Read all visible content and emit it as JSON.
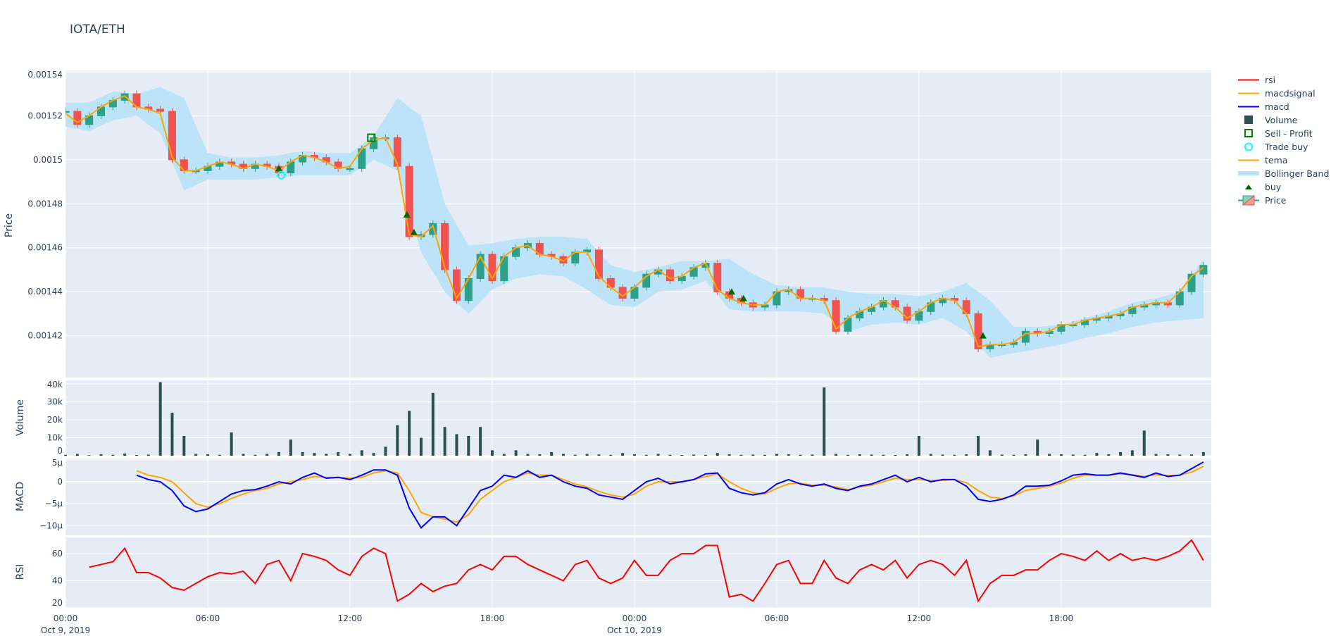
{
  "title": "IOTA/ETH",
  "legend": [
    {
      "name": "rsi",
      "kind": "line",
      "color": "#ff0000"
    },
    {
      "name": "macdsignal",
      "kind": "line",
      "color": "#ffa500"
    },
    {
      "name": "macd",
      "kind": "line",
      "color": "#0000ff"
    },
    {
      "name": "Volume",
      "kind": "bar",
      "color": "#2f4f4f"
    },
    {
      "name": "Sell - Profit",
      "kind": "square",
      "color": "#008000"
    },
    {
      "name": "Trade buy",
      "kind": "circle",
      "color": "#00ffff"
    },
    {
      "name": "tema",
      "kind": "line",
      "color": "#ffa500"
    },
    {
      "name": "Bollinger Band",
      "kind": "band",
      "color": "#b9e3f7"
    },
    {
      "name": "buy",
      "kind": "triangle",
      "color": "#006400"
    },
    {
      "name": "Price",
      "kind": "candle",
      "color": "#2ca089"
    }
  ],
  "chart_data": {
    "type": "candlestick-with-subplots",
    "x_axis": {
      "range": [
        "2019-10-09 00:00",
        "2019-10-11 00:20"
      ],
      "ticks": [
        {
          "hour": 0,
          "label": "00:00",
          "date": "Oct 9, 2019"
        },
        {
          "hour": 6,
          "label": "06:00",
          "date": ""
        },
        {
          "hour": 12,
          "label": "12:00",
          "date": ""
        },
        {
          "hour": 18,
          "label": "18:00",
          "date": ""
        },
        {
          "hour": 24,
          "label": "00:00",
          "date": "Oct 10, 2019"
        },
        {
          "hour": 30,
          "label": "06:00",
          "date": ""
        },
        {
          "hour": 36,
          "label": "12:00",
          "date": ""
        },
        {
          "hour": 42,
          "label": "18:00",
          "date": ""
        }
      ]
    },
    "colors": {
      "increasing": "#2ca089",
      "decreasing": "#ef5350",
      "band": "#b9e3f7",
      "tema": "#ffa500",
      "volume": "#2f4f4f",
      "macd": "#0000ff",
      "macdsignal": "#ffa500",
      "rsi": "#ff0000",
      "buy": "#006400",
      "sell": "#008000",
      "trade_buy": "#00ffff"
    },
    "price": {
      "ylabel": "Price",
      "ylim": [
        0.001401,
        0.0015406
      ],
      "ticks": [
        {
          "v": 0.00142,
          "label": "0.00142"
        },
        {
          "v": 0.00144,
          "label": "0.00144"
        },
        {
          "v": 0.00146,
          "label": "0.00146"
        },
        {
          "v": 0.00148,
          "label": "0.00148"
        },
        {
          "v": 0.0015,
          "label": "0.0015"
        },
        {
          "v": 0.00152,
          "label": "0.00152"
        },
        {
          "v": 0.00154,
          "label": "0.00154"
        }
      ],
      "start": "2019-10-09 00:00",
      "interval_minutes": 30,
      "close": [
        0.001522,
        0.001516,
        0.00152,
        0.001524,
        0.001527,
        0.00153,
        0.001524,
        0.001523,
        0.001522,
        0.0015,
        0.001495,
        0.001495,
        0.001497,
        0.001499,
        0.001498,
        0.001496,
        0.001498,
        0.001497,
        0.001494,
        0.001499,
        0.001502,
        0.001501,
        0.001499,
        0.001496,
        0.001496,
        0.001505,
        0.00151,
        0.00151,
        0.001497,
        0.001465,
        0.001466,
        0.001471,
        0.00145,
        0.001436,
        0.001446,
        0.001457,
        0.001445,
        0.001456,
        0.00146,
        0.001462,
        0.001457,
        0.001456,
        0.001453,
        0.001458,
        0.001459,
        0.001446,
        0.001442,
        0.001437,
        0.001442,
        0.001448,
        0.00145,
        0.001445,
        0.001447,
        0.001451,
        0.001453,
        0.00144,
        0.001437,
        0.001435,
        0.001433,
        0.001434,
        0.00144,
        0.001441,
        0.001437,
        0.001437,
        0.001436,
        0.001422,
        0.001428,
        0.001431,
        0.001433,
        0.001436,
        0.001433,
        0.001427,
        0.001431,
        0.001435,
        0.001437,
        0.001436,
        0.00143,
        0.001414,
        0.001416,
        0.001416,
        0.001417,
        0.001422,
        0.001421,
        0.001422,
        0.001425,
        0.001425,
        0.001427,
        0.001428,
        0.001429,
        0.00143,
        0.001433,
        0.001434,
        0.001435,
        0.001434,
        0.00144,
        0.001448,
        0.001452
      ],
      "tema": [
        0.001521,
        0.001517,
        0.00152,
        0.001524,
        0.001527,
        0.001529,
        0.001524,
        0.001523,
        0.001521,
        0.001501,
        0.001495,
        0.001495,
        0.001497,
        0.001499,
        0.001498,
        0.001496,
        0.001498,
        0.001497,
        0.001495,
        0.001499,
        0.001502,
        0.001501,
        0.001499,
        0.001496,
        0.001497,
        0.001505,
        0.001509,
        0.00151,
        0.001498,
        0.001466,
        0.001465,
        0.00147,
        0.001451,
        0.001437,
        0.001446,
        0.001456,
        0.001446,
        0.001456,
        0.00146,
        0.001461,
        0.001457,
        0.001456,
        0.001454,
        0.001458,
        0.001458,
        0.001447,
        0.001442,
        0.001438,
        0.001442,
        0.001447,
        0.00145,
        0.001446,
        0.001447,
        0.001451,
        0.001453,
        0.001441,
        0.001437,
        0.001435,
        0.001434,
        0.001434,
        0.00144,
        0.001441,
        0.001437,
        0.001437,
        0.001436,
        0.001423,
        0.001428,
        0.001431,
        0.001433,
        0.001436,
        0.001433,
        0.001428,
        0.001431,
        0.001435,
        0.001437,
        0.001436,
        0.00143,
        0.001415,
        0.001416,
        0.001416,
        0.001417,
        0.001421,
        0.001421,
        0.001422,
        0.001425,
        0.001425,
        0.001427,
        0.001428,
        0.001429,
        0.00143,
        0.001433,
        0.001434,
        0.001435,
        0.001435,
        0.00144,
        0.001447,
        0.001451
      ],
      "bollinger_interval_minutes": 60,
      "bb_upper": [
        0.001526,
        0.001526,
        0.001531,
        0.00153,
        0.001533,
        0.001528,
        0.001503,
        0.001501,
        0.001501,
        0.001502,
        0.001504,
        0.001503,
        0.001503,
        0.001511,
        0.001528,
        0.00152,
        0.00148,
        0.001461,
        0.001462,
        0.001464,
        0.001465,
        0.001465,
        0.001464,
        0.001452,
        0.001449,
        0.001451,
        0.001454,
        0.001454,
        0.001455,
        0.001448,
        0.001443,
        0.001442,
        0.001442,
        0.00144,
        0.001439,
        0.001439,
        0.001438,
        0.00144,
        0.001444,
        0.001436,
        0.001424,
        0.001424,
        0.001425,
        0.001428,
        0.001431,
        0.001435,
        0.001437,
        0.00144,
        0.001455
      ],
      "bb_lower": [
        0.001515,
        0.001513,
        0.001518,
        0.00152,
        0.001512,
        0.001486,
        0.001491,
        0.001491,
        0.001491,
        0.001492,
        0.001493,
        0.001493,
        0.001493,
        0.0015,
        0.001495,
        0.001458,
        0.00144,
        0.00143,
        0.001441,
        0.001446,
        0.001448,
        0.001447,
        0.001441,
        0.001434,
        0.001433,
        0.00144,
        0.001441,
        0.001445,
        0.001432,
        0.001431,
        0.001431,
        0.001431,
        0.00143,
        0.001422,
        0.001425,
        0.001426,
        0.001425,
        0.001428,
        0.001422,
        0.00141,
        0.001412,
        0.001414,
        0.001416,
        0.001419,
        0.001421,
        0.001424,
        0.001426,
        0.001427,
        0.001428
      ],
      "buy": [
        {
          "hour": 9.0,
          "price": 0.001496
        },
        {
          "hour": 14.4,
          "price": 0.001475
        },
        {
          "hour": 14.7,
          "price": 0.001467
        },
        {
          "hour": 28.1,
          "price": 0.00144
        },
        {
          "hour": 28.6,
          "price": 0.001437
        },
        {
          "hour": 38.7,
          "price": 0.00142
        }
      ],
      "trade_buy": [
        {
          "hour": 9.1,
          "price": 0.001493
        }
      ],
      "sell_profit": [
        {
          "hour": 12.9,
          "price": 0.00151
        }
      ]
    },
    "volume": {
      "ylabel": "Volume",
      "ylim": [
        0,
        42000
      ],
      "ticks": [
        {
          "v": 0,
          "label": "0"
        },
        {
          "v": 10000,
          "label": "10k"
        },
        {
          "v": 20000,
          "label": "20k"
        },
        {
          "v": 30000,
          "label": "30k"
        },
        {
          "v": 40000,
          "label": "40k"
        }
      ],
      "start": "2019-10-09 00:00",
      "interval_minutes": 30,
      "values": [
        500,
        1000,
        300,
        800,
        500,
        1200,
        400,
        600,
        41000,
        24000,
        11000,
        1000,
        800,
        500,
        13000,
        1000,
        500,
        1000,
        2000,
        9000,
        2000,
        1500,
        1000,
        2000,
        1000,
        3000,
        1500,
        5000,
        17000,
        25000,
        10000,
        35000,
        16000,
        12000,
        11000,
        16000,
        3000,
        1000,
        3000,
        1000,
        800,
        2000,
        1000,
        500,
        1000,
        700,
        500,
        1500,
        800,
        500,
        1000,
        500,
        400,
        600,
        500,
        1500,
        800,
        500,
        600,
        500,
        1000,
        800,
        500,
        600,
        38000,
        1000,
        500,
        800,
        600,
        500,
        400,
        800,
        11000,
        1000,
        600,
        500,
        800,
        11000,
        3000,
        600,
        500,
        800,
        9000,
        1000,
        800,
        600,
        500,
        1500,
        800,
        2000,
        3000,
        14000,
        1000,
        800,
        600,
        700,
        2000
      ]
    },
    "macd": {
      "ylabel": "MACD",
      "ylim": [
        -1.22e-05,
        5.3e-06
      ],
      "ticks": [
        {
          "v": 5e-06,
          "label": "5μ"
        },
        {
          "v": 0,
          "label": "0"
        },
        {
          "v": -5e-06,
          "label": "−5μ"
        },
        {
          "v": -1e-05,
          "label": "−10μ"
        }
      ],
      "start": "2019-10-09 03:00",
      "interval_minutes": 30,
      "macd": [
        1.5e-06,
        5e-07,
        0,
        -2e-06,
        -5.5e-06,
        -6.8e-06,
        -6.2e-06,
        -4.5e-06,
        -2.8e-06,
        -2e-06,
        -1.8e-06,
        -1e-06,
        0,
        -5e-07,
        1e-06,
        2e-06,
        8e-07,
        1e-06,
        5e-07,
        1.5e-06,
        2.7e-06,
        2.7e-06,
        1.5e-06,
        -6e-06,
        -1.05e-05,
        -8e-06,
        -8e-06,
        -1e-05,
        -6e-06,
        -2e-06,
        -1e-06,
        1.5e-06,
        1e-06,
        2.5e-06,
        1e-06,
        1.5e-06,
        0,
        -1e-06,
        -1.5e-06,
        -3e-06,
        -3.5e-06,
        -4e-06,
        -2e-06,
        0,
        8e-07,
        -5e-07,
        0,
        5e-07,
        1.8e-06,
        2e-06,
        -1.5e-06,
        -2.5e-06,
        -3e-06,
        -2.5e-06,
        -5e-07,
        5e-07,
        -5e-07,
        -1e-06,
        -5e-07,
        -1.5e-06,
        -2e-06,
        -1e-06,
        -5e-07,
        5e-07,
        1.5e-06,
        0,
        1e-06,
        0,
        5e-07,
        5e-07,
        -1e-06,
        -4e-06,
        -4.5e-06,
        -4e-06,
        -3e-06,
        -1e-06,
        -1e-06,
        -8e-07,
        2e-07,
        1.5e-06,
        1.8e-06,
        1.5e-06,
        1.5e-06,
        2e-06,
        1.5e-06,
        1e-06,
        2e-06,
        1.2e-06,
        1.5e-06,
        3e-06,
        4.5e-06
      ],
      "macdsignal": [
        2.5e-06,
        1.5e-06,
        1e-06,
        0,
        -2.5e-06,
        -5e-06,
        -5.8e-06,
        -5e-06,
        -3.8e-06,
        -2.8e-06,
        -2e-06,
        -1.5e-06,
        -5e-07,
        0,
        5e-07,
        1.2e-06,
        1e-06,
        1e-06,
        8e-07,
        1e-06,
        2e-06,
        2.5e-06,
        2e-06,
        -2e-06,
        -7e-06,
        -8e-06,
        -8.5e-06,
        -9.2e-06,
        -7.5e-06,
        -4e-06,
        -2e-06,
        0,
        1e-06,
        2e-06,
        1.5e-06,
        1.5e-06,
        5e-07,
        -5e-07,
        -1.2e-06,
        -2.2e-06,
        -3e-06,
        -3.5e-06,
        -2.8e-06,
        -1e-06,
        0,
        0,
        0,
        5e-07,
        1.2e-06,
        1.8e-06,
        0,
        -1.5e-06,
        -2.5e-06,
        -2.8e-06,
        -1.5e-06,
        -5e-07,
        -3e-07,
        -8e-07,
        -8e-07,
        -1.2e-06,
        -1.8e-06,
        -1.2e-06,
        -8e-07,
        0,
        8e-07,
        5e-07,
        5e-07,
        3e-07,
        3e-07,
        5e-07,
        -2e-07,
        -2e-06,
        -3.5e-06,
        -3.8e-06,
        -3.2e-06,
        -2e-06,
        -1.5e-06,
        -1e-06,
        -3e-07,
        8e-07,
        1.5e-06,
        1.5e-06,
        1.5e-06,
        1.8e-06,
        1.6e-06,
        1.2e-06,
        1.6e-06,
        1.4e-06,
        1.5e-06,
        2.2e-06,
        3.5e-06
      ]
    },
    "rsi": {
      "ylabel": "RSI",
      "ylim": [
        20,
        72
      ],
      "ticks": [
        {
          "v": 20,
          "label": "20"
        },
        {
          "v": 40,
          "label": "40"
        },
        {
          "v": 60,
          "label": "60"
        }
      ],
      "start": "2019-10-09 01:00",
      "interval_minutes": 30,
      "values": [
        50,
        52,
        54,
        64,
        46,
        46,
        42,
        35,
        33,
        38,
        43,
        46,
        45,
        47,
        38,
        52,
        55,
        40,
        60,
        58,
        55,
        48,
        44,
        58,
        64,
        60,
        25,
        30,
        38,
        32,
        36,
        38,
        48,
        52,
        48,
        58,
        58,
        52,
        48,
        44,
        40,
        52,
        55,
        42,
        38,
        42,
        55,
        44,
        44,
        55,
        60,
        60,
        66,
        66,
        28,
        30,
        25,
        38,
        52,
        55,
        38,
        38,
        55,
        42,
        38,
        48,
        52,
        48,
        55,
        42,
        52,
        55,
        52,
        44,
        55,
        25,
        38,
        44,
        44,
        48,
        48,
        55,
        60,
        58,
        55,
        62,
        55,
        60,
        55,
        57,
        55,
        58,
        62,
        70,
        55
      ]
    }
  }
}
